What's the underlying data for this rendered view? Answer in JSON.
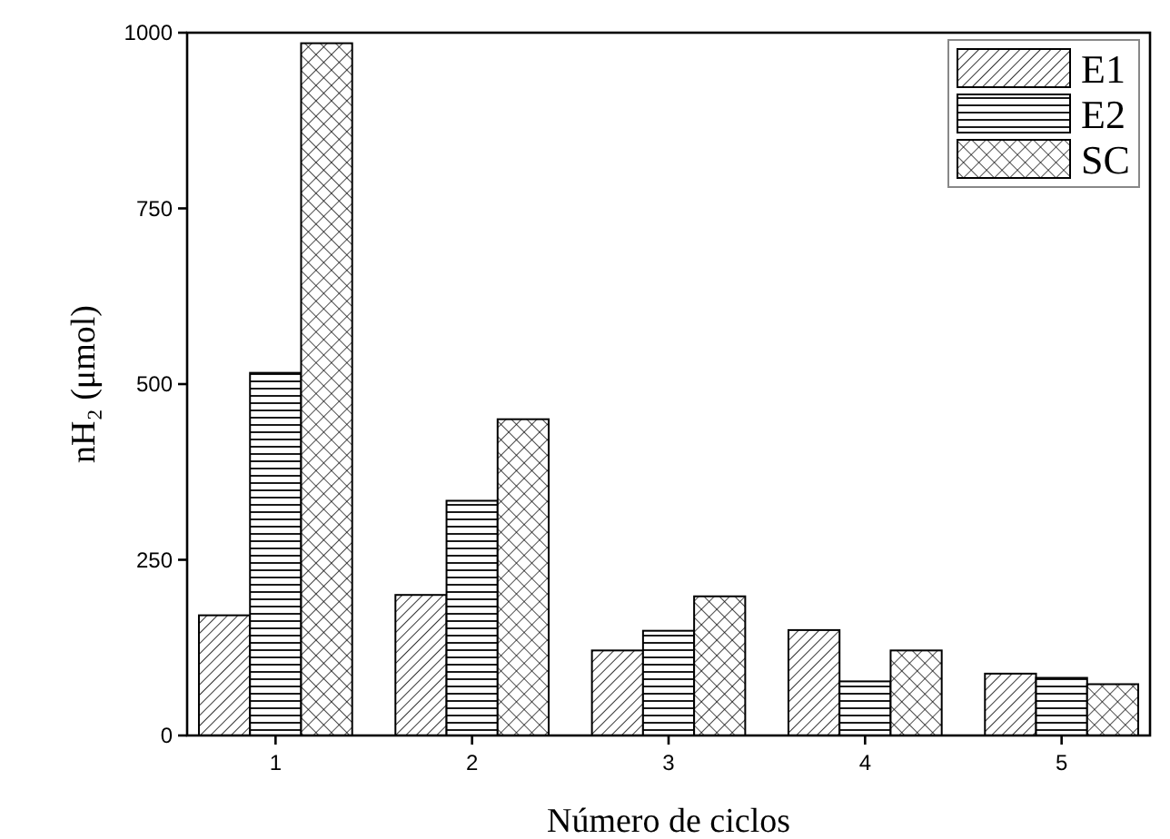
{
  "chart_data": {
    "type": "bar",
    "xlabel": "Número de ciclos",
    "ylabel": "nH₂ (μmol)",
    "categories": [
      "1",
      "2",
      "3",
      "4",
      "5"
    ],
    "series": [
      {
        "name": "E1",
        "color": "#000000",
        "values": [
          171,
          200,
          121,
          150,
          88
        ]
      },
      {
        "name": "E2",
        "color": "#000000",
        "values": [
          516,
          334,
          149,
          77,
          82
        ]
      },
      {
        "name": "SC",
        "color": "#000000",
        "values": [
          985,
          450,
          198,
          121,
          73
        ]
      }
    ],
    "ylim": [
      0,
      1000
    ],
    "yticks": [
      0,
      250,
      500,
      750,
      1000
    ],
    "grid": false,
    "legend": "top right"
  }
}
